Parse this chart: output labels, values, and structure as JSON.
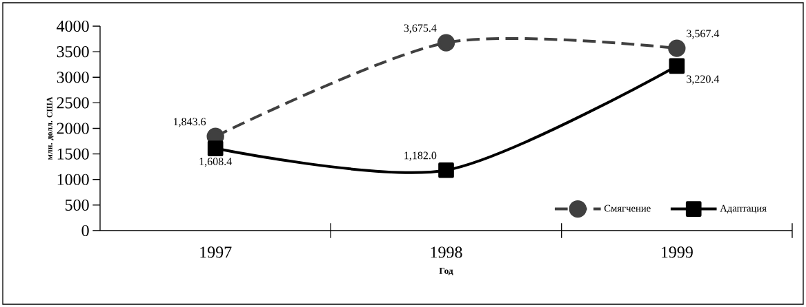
{
  "chart_data": {
    "type": "line",
    "xlabel": "Год",
    "ylabel": "млн. долл. США",
    "categories": [
      "1997",
      "1998",
      "1999"
    ],
    "ylim": [
      0,
      4000
    ],
    "yticks": [
      0,
      500,
      1000,
      1500,
      2000,
      2500,
      3000,
      3500,
      4000
    ],
    "legend": "bottom right",
    "grid": false,
    "series": [
      {
        "name": "Смягчение",
        "color": "#404040",
        "values": [
          1843.6,
          3675.4,
          3567.4
        ],
        "value_labels": [
          "1,843.6",
          "3,675.4",
          "3,567.4"
        ],
        "marker": "circle",
        "line_style": "dashed"
      },
      {
        "name": "Адаптация",
        "color": "#000000",
        "values": [
          1608.4,
          1182.0,
          3220.4
        ],
        "value_labels": [
          "1,608.4",
          "1,182.0",
          "3,220.4"
        ],
        "marker": "square",
        "line_style": "solid"
      }
    ]
  }
}
